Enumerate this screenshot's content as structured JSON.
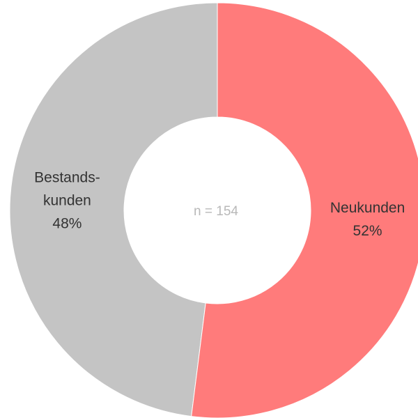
{
  "chart_data": {
    "type": "donut",
    "categories": [
      [
        "Neukunden"
      ],
      [
        "Bestands-",
        "kunden"
      ]
    ],
    "values": [
      52,
      48
    ],
    "value_labels": [
      "52%",
      "48%"
    ],
    "colors": [
      "#ff7b7b",
      "#c4c4c4"
    ],
    "annotation": "n = 154"
  }
}
